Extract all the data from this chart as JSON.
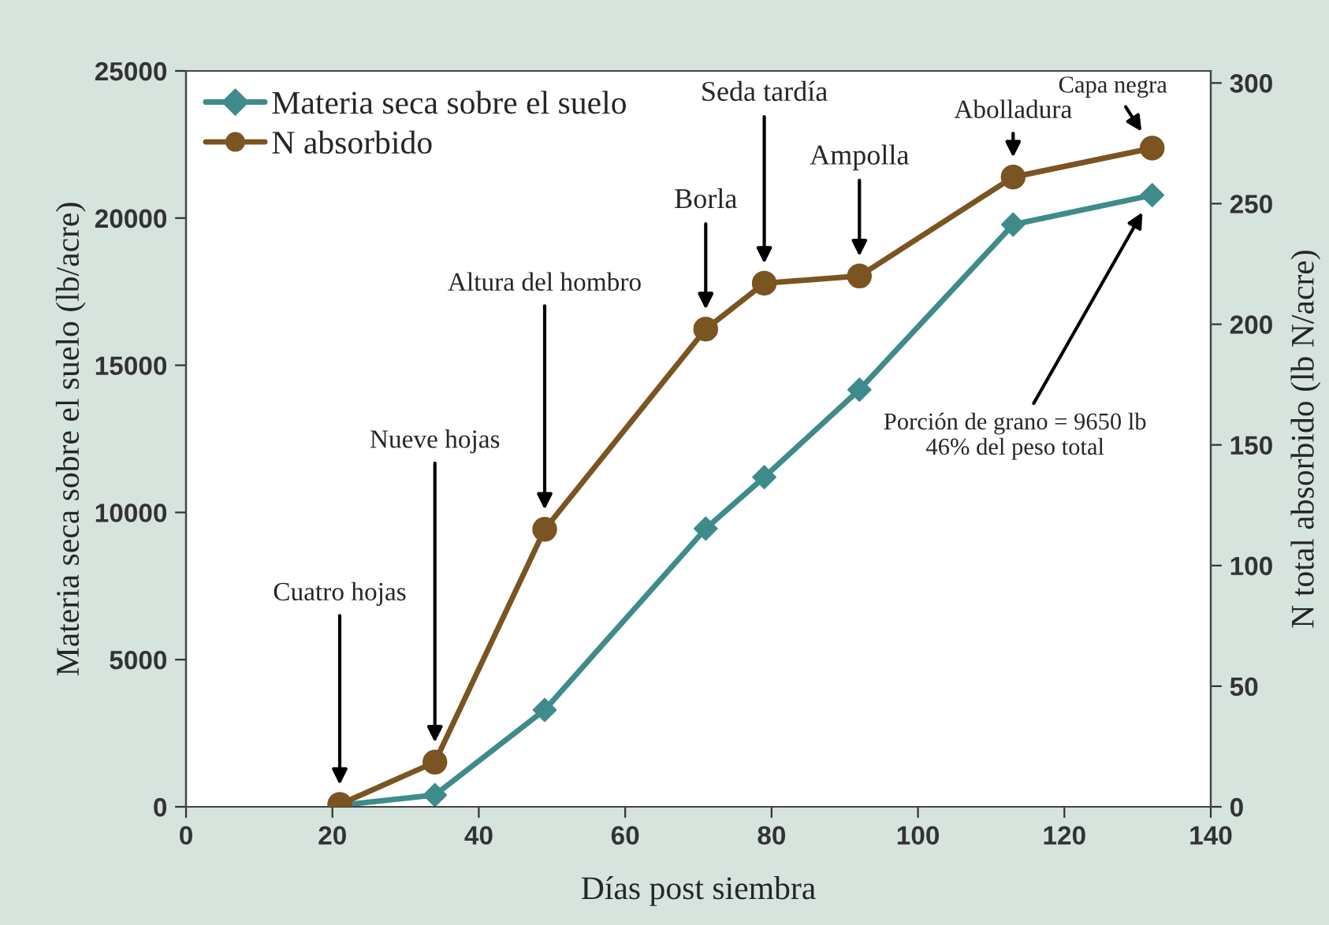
{
  "chart_data": {
    "type": "line",
    "xlabel": "Días post siembra",
    "ylabel": "Materia seca sobre el suelo (lb/acre)",
    "y2label": "N total absorbido (lb N/acre)",
    "xlim": [
      0,
      140
    ],
    "xticks": [
      0,
      20,
      40,
      60,
      80,
      100,
      120,
      140
    ],
    "ylim": [
      0,
      25000
    ],
    "yticks": [
      0,
      5000,
      10000,
      15000,
      20000,
      25000
    ],
    "y2lim": [
      0,
      305
    ],
    "y2ticks": [
      0,
      50,
      100,
      150,
      200,
      250,
      300
    ],
    "x": [
      21,
      34,
      49,
      71,
      79,
      92,
      113,
      132
    ],
    "series": [
      {
        "name": "Materia seca sobre el suelo",
        "color": "#3f8b8b",
        "marker": "diamond",
        "values": [
          50,
          400,
          3290,
          9450,
          11200,
          14170,
          19780,
          20780
        ]
      },
      {
        "name": "N absorbido",
        "color": "#7a5522",
        "marker": "circle",
        "axis": "y2",
        "values": [
          1,
          18.5,
          115,
          198,
          217,
          220,
          261,
          273
        ]
      }
    ],
    "annotations": [
      "Cuatro hojas",
      "Nueve hojas",
      "Altura del hombro",
      "Borla",
      "Seda tardía",
      "Ampolla",
      "Abolladura",
      "Capa negra",
      "Porción de grano = 9650 lb\n46% del peso total"
    ],
    "legend": "top left",
    "grid": false,
    "line_style": "solid"
  }
}
